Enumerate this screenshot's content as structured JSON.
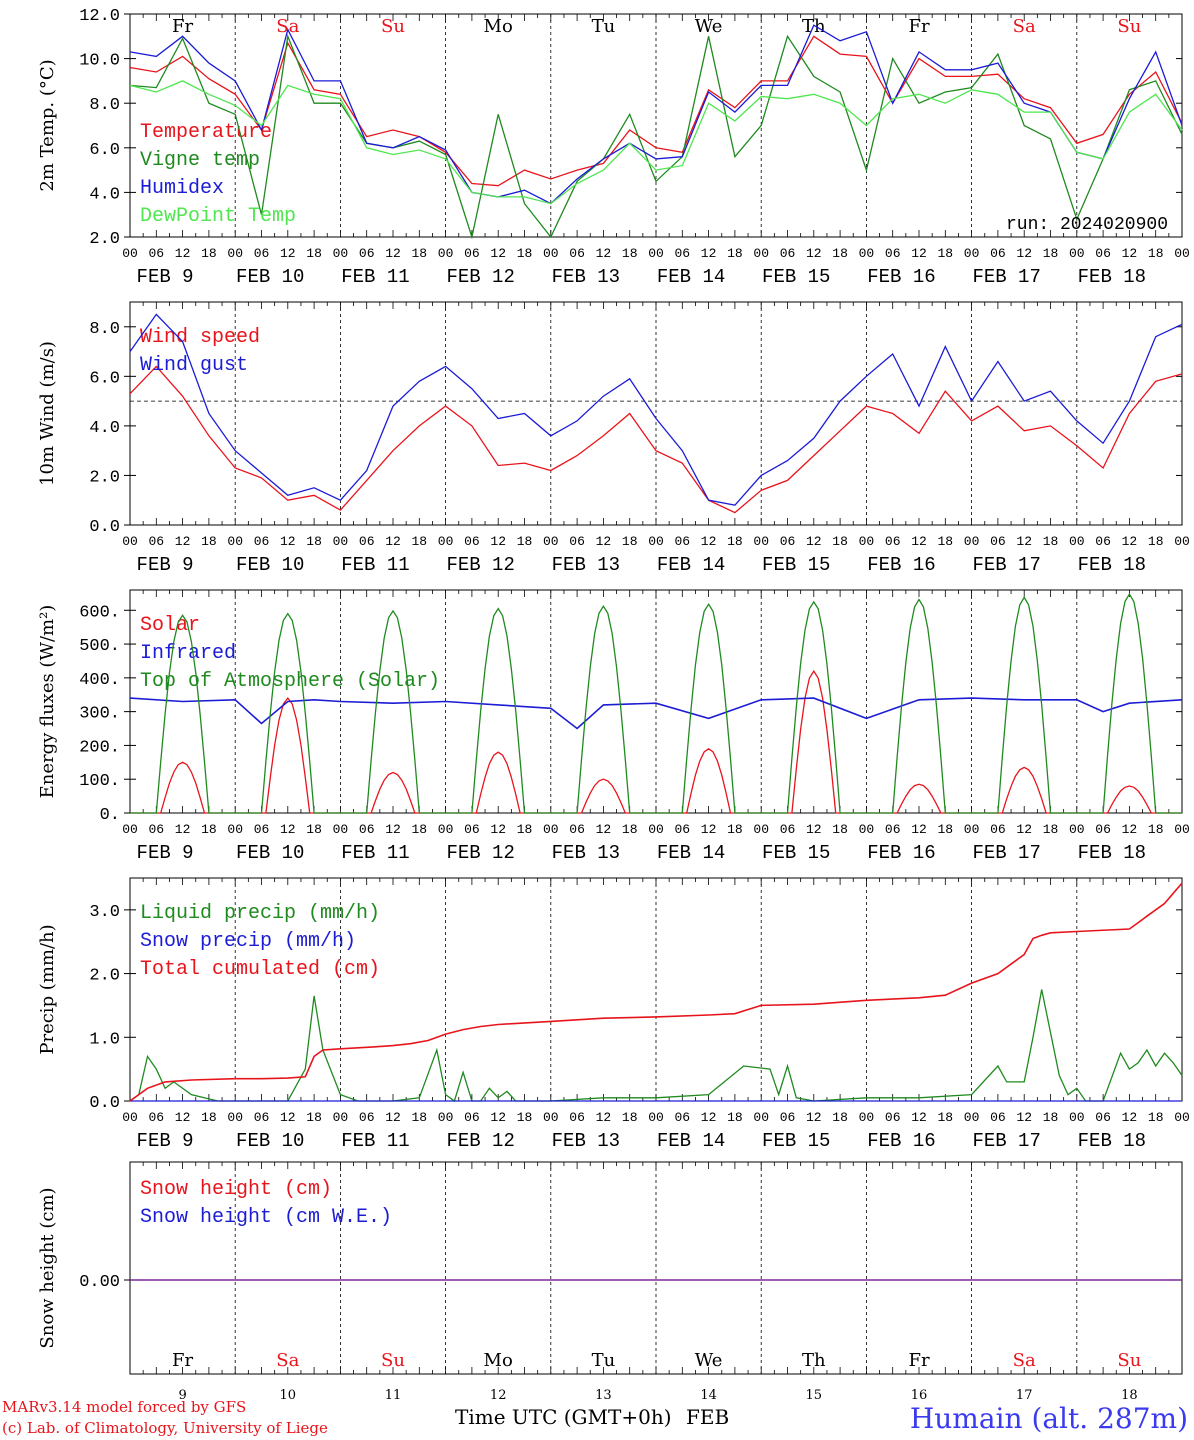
{
  "colors": {
    "red": "#e8141c",
    "darkgreen": "#1f8a1f",
    "blue": "#1c1cd6",
    "lightgreen": "#4fe64f",
    "black": "#000000",
    "purple": "#7a1f8f",
    "title_blue": "#3a3aee"
  },
  "axis": {
    "hour_ticks": [
      "00",
      "06",
      "12",
      "18"
    ],
    "final_hour": "00",
    "day_labels": [
      "FEB  9",
      "FEB 10",
      "FEB 11",
      "FEB 12",
      "FEB 13",
      "FEB 14",
      "FEB 15",
      "FEB 16",
      "FEB 17",
      "FEB 18"
    ],
    "weekdays": [
      "Fr",
      "Sa",
      "Su",
      "Mo",
      "Tu",
      "We",
      "Th",
      "Fr",
      "Sa",
      "Su"
    ],
    "weekday_colors": [
      "black",
      "red",
      "red",
      "black",
      "black",
      "black",
      "black",
      "black",
      "red",
      "red"
    ],
    "day_numbers": [
      "9",
      "10",
      "11",
      "12",
      "13",
      "14",
      "15",
      "16",
      "17",
      "18"
    ]
  },
  "footer": {
    "credit_line1": "MARv3.14 model forced by GFS",
    "credit_line2": "(c) Lab. of Climatology, University of Liege",
    "time_label": "Time UTC (GMT+0h)",
    "month": "FEB",
    "station": "Humain (alt. 287m)"
  },
  "chart_data": [
    {
      "type": "line",
      "ylabel": "2m Temp. (°C)",
      "ylim": [
        2,
        12
      ],
      "ytick_labels": [
        "2.0",
        "4.0",
        "6.0",
        "8.0",
        "10.0",
        "12.0"
      ],
      "annotation": "run: 2024020900",
      "x_unit": "hours since FEB 9 00 UTC",
      "series": [
        {
          "name": "Temperature",
          "color": "red",
          "x": [
            0,
            6,
            12,
            18,
            24,
            30,
            36,
            42,
            48,
            54,
            60,
            66,
            72,
            78,
            84,
            90,
            96,
            102,
            108,
            114,
            120,
            126,
            132,
            138,
            144,
            150,
            156,
            162,
            168,
            174,
            180,
            186,
            192,
            198,
            204,
            210,
            216,
            222,
            228,
            234,
            240
          ],
          "values": [
            9.6,
            9.4,
            10.1,
            9.1,
            8.4,
            6.8,
            10.7,
            8.6,
            8.4,
            6.5,
            6.8,
            6.5,
            5.8,
            4.4,
            4.3,
            5.0,
            4.6,
            5.0,
            5.3,
            6.8,
            6.0,
            5.8,
            8.6,
            7.8,
            9.0,
            9.0,
            11.0,
            10.2,
            10.1,
            8.0,
            10.0,
            9.2,
            9.2,
            9.3,
            8.2,
            7.8,
            6.2,
            6.6,
            8.4,
            9.4,
            7.1
          ]
        },
        {
          "name": "Vigne temp",
          "color": "darkgreen",
          "x": [
            0,
            6,
            12,
            18,
            24,
            30,
            36,
            42,
            48,
            54,
            60,
            66,
            72,
            78,
            84,
            90,
            96,
            102,
            108,
            114,
            120,
            126,
            132,
            138,
            144,
            150,
            156,
            162,
            168,
            174,
            180,
            186,
            192,
            198,
            204,
            210,
            216,
            222,
            228,
            234,
            240
          ],
          "values": [
            8.8,
            8.7,
            10.9,
            8.0,
            7.5,
            3.0,
            11.0,
            8.0,
            8.0,
            6.2,
            6.0,
            6.3,
            5.7,
            2.0,
            7.5,
            3.5,
            2.0,
            4.5,
            5.5,
            7.5,
            4.5,
            5.6,
            11.0,
            5.6,
            7.0,
            11.0,
            9.2,
            8.5,
            5.0,
            10.0,
            8.0,
            8.5,
            8.7,
            10.2,
            7.0,
            6.4,
            2.8,
            5.5,
            8.6,
            9.0,
            6.6
          ]
        },
        {
          "name": "Humidex",
          "color": "blue",
          "x": [
            0,
            6,
            12,
            18,
            24,
            30,
            36,
            42,
            48,
            54,
            60,
            66,
            72,
            78,
            84,
            90,
            96,
            102,
            108,
            114,
            120,
            126,
            132,
            138,
            144,
            150,
            156,
            162,
            168,
            174,
            180,
            186,
            192,
            198,
            204,
            210,
            216,
            222,
            228,
            234,
            240
          ],
          "values": [
            10.3,
            10.1,
            11.0,
            9.8,
            9.0,
            6.8,
            11.3,
            9.0,
            9.0,
            6.2,
            6.0,
            6.5,
            5.9,
            4.0,
            3.8,
            4.1,
            3.5,
            4.6,
            5.5,
            6.2,
            5.5,
            5.6,
            8.5,
            7.6,
            8.8,
            8.8,
            11.5,
            10.8,
            11.2,
            8.0,
            10.3,
            9.5,
            9.5,
            9.8,
            8.0,
            7.6,
            5.8,
            5.5,
            8.2,
            10.3,
            7.0
          ]
        },
        {
          "name": "DewPoint Temp",
          "color": "lightgreen",
          "x": [
            0,
            6,
            12,
            18,
            24,
            30,
            36,
            42,
            48,
            54,
            60,
            66,
            72,
            78,
            84,
            90,
            96,
            102,
            108,
            114,
            120,
            126,
            132,
            138,
            144,
            150,
            156,
            162,
            168,
            174,
            180,
            186,
            192,
            198,
            204,
            210,
            216,
            222,
            228,
            234,
            240
          ],
          "values": [
            8.8,
            8.5,
            9.0,
            8.4,
            7.9,
            7.0,
            8.8,
            8.4,
            8.2,
            6.0,
            5.7,
            5.9,
            5.5,
            4.0,
            3.8,
            3.8,
            3.5,
            4.4,
            5.0,
            6.2,
            5.0,
            5.2,
            8.0,
            7.2,
            8.3,
            8.2,
            8.4,
            8.0,
            7.0,
            8.2,
            8.4,
            8.0,
            8.6,
            8.4,
            7.6,
            7.6,
            5.8,
            5.5,
            7.6,
            8.4,
            6.8
          ]
        }
      ]
    },
    {
      "type": "line",
      "ylabel": "10m Wind (m/s)",
      "ylim": [
        0,
        9
      ],
      "ytick_labels": [
        "0.0",
        "2.0",
        "4.0",
        "6.0",
        "8.0"
      ],
      "reference_line": 5.0,
      "x_unit": "hours since FEB 9 00 UTC",
      "series": [
        {
          "name": "Wind speed",
          "color": "red",
          "x": [
            0,
            6,
            12,
            18,
            24,
            30,
            36,
            42,
            48,
            54,
            60,
            66,
            72,
            78,
            84,
            90,
            96,
            102,
            108,
            114,
            120,
            126,
            132,
            138,
            144,
            150,
            156,
            162,
            168,
            174,
            180,
            186,
            192,
            198,
            204,
            210,
            216,
            222,
            228,
            234,
            240
          ],
          "values": [
            5.3,
            6.4,
            5.2,
            3.6,
            2.3,
            1.9,
            1.0,
            1.2,
            0.6,
            1.8,
            3.0,
            4.0,
            4.8,
            4.0,
            2.4,
            2.5,
            2.2,
            2.8,
            3.6,
            4.5,
            3.0,
            2.5,
            1.0,
            0.5,
            1.4,
            1.8,
            2.8,
            3.8,
            4.8,
            4.5,
            3.7,
            5.4,
            4.2,
            4.8,
            3.8,
            4.0,
            3.2,
            2.3,
            4.5,
            5.8,
            6.1
          ]
        },
        {
          "name": "Wind gust",
          "color": "blue",
          "x": [
            0,
            6,
            12,
            18,
            24,
            30,
            36,
            42,
            48,
            54,
            60,
            66,
            72,
            78,
            84,
            90,
            96,
            102,
            108,
            114,
            120,
            126,
            132,
            138,
            144,
            150,
            156,
            162,
            168,
            174,
            180,
            186,
            192,
            198,
            204,
            210,
            216,
            222,
            228,
            234,
            240
          ],
          "values": [
            7.0,
            8.5,
            7.4,
            4.5,
            3.0,
            2.1,
            1.2,
            1.5,
            1.0,
            2.2,
            4.8,
            5.8,
            6.4,
            5.5,
            4.3,
            4.5,
            3.6,
            4.2,
            5.2,
            5.9,
            4.3,
            3.0,
            1.0,
            0.8,
            2.0,
            2.6,
            3.5,
            5.0,
            6.0,
            6.9,
            4.8,
            7.2,
            5.0,
            6.6,
            5.0,
            5.4,
            4.2,
            3.3,
            5.0,
            7.6,
            8.1
          ]
        }
      ]
    },
    {
      "type": "line",
      "ylabel": "Energy fluxes (W/m²)",
      "ylim": [
        0,
        660
      ],
      "ytick_labels": [
        "0.",
        "100.",
        "200.",
        "300.",
        "400.",
        "500.",
        "600."
      ],
      "x_unit": "hours since FEB 9 00 UTC",
      "series": [
        {
          "name": "Solar",
          "color": "red",
          "daily_peak_hour": [
            12,
            12,
            12,
            12,
            12,
            12,
            12,
            12,
            12,
            12
          ],
          "daily_peak": [
            150,
            340,
            120,
            180,
            100,
            190,
            420,
            85,
            135,
            80
          ]
        },
        {
          "name": "Infrared",
          "color": "blue",
          "x": [
            0,
            12,
            24,
            30,
            36,
            42,
            48,
            60,
            72,
            84,
            96,
            102,
            108,
            120,
            132,
            144,
            156,
            168,
            180,
            192,
            204,
            216,
            222,
            228,
            240
          ],
          "values": [
            340,
            330,
            335,
            265,
            330,
            335,
            330,
            325,
            330,
            320,
            310,
            250,
            320,
            325,
            280,
            335,
            340,
            280,
            335,
            340,
            335,
            335,
            300,
            325,
            335
          ]
        },
        {
          "name": "Top of Atmosphere (Solar)",
          "color": "darkgreen",
          "daily_peak_hour": [
            12,
            12,
            12,
            12,
            12,
            12,
            12,
            12,
            12,
            12
          ],
          "daily_peak": [
            585,
            590,
            598,
            605,
            612,
            618,
            625,
            632,
            638,
            648
          ]
        }
      ]
    },
    {
      "type": "line",
      "ylabel": "Precip (mm/h)",
      "ylim": [
        0,
        3.5
      ],
      "ytick_labels": [
        "0.0",
        "1.0",
        "2.0",
        "3.0"
      ],
      "x_unit": "hours since FEB 9 00 UTC",
      "series": [
        {
          "name": "Liquid precip (mm/h)",
          "color": "darkgreen",
          "x": [
            0,
            2,
            4,
            6,
            8,
            10,
            14,
            20,
            30,
            36,
            40,
            42,
            44,
            48,
            52,
            56,
            60,
            66,
            70,
            72,
            74,
            76,
            78,
            80,
            82,
            84,
            86,
            88,
            90,
            96,
            108,
            120,
            132,
            140,
            146,
            148,
            150,
            152,
            156,
            168,
            180,
            192,
            198,
            200,
            204,
            206,
            208,
            212,
            214,
            216,
            218,
            222,
            226,
            228,
            230,
            232,
            234,
            236,
            238,
            240
          ],
          "values": [
            0,
            0.1,
            0.7,
            0.5,
            0.2,
            0.3,
            0.1,
            0,
            0,
            0,
            0.5,
            1.65,
            0.8,
            0.1,
            0,
            0,
            0,
            0.05,
            0.8,
            0.1,
            0,
            0.45,
            0,
            0,
            0.2,
            0.05,
            0.15,
            0,
            0,
            0,
            0.05,
            0.05,
            0.1,
            0.55,
            0.5,
            0.1,
            0.55,
            0.05,
            0,
            0.05,
            0.05,
            0.1,
            0.55,
            0.3,
            0.3,
            1.0,
            1.75,
            0.4,
            0.1,
            0.2,
            0,
            0,
            0.75,
            0.5,
            0.6,
            0.8,
            0.55,
            0.75,
            0.6,
            0.4
          ]
        },
        {
          "name": "Snow precip (mm/h)",
          "color": "blue",
          "x": [
            0,
            240
          ],
          "values": [
            0,
            0
          ]
        },
        {
          "name": "Total cumulated (cm)",
          "color": "red",
          "x": [
            0,
            4,
            8,
            14,
            24,
            30,
            36,
            40,
            42,
            44,
            48,
            56,
            60,
            64,
            68,
            72,
            76,
            80,
            84,
            96,
            108,
            120,
            132,
            138,
            144,
            156,
            168,
            180,
            186,
            192,
            198,
            204,
            206,
            208,
            210,
            216,
            228,
            230,
            232,
            236,
            240
          ],
          "values": [
            0,
            0.2,
            0.3,
            0.33,
            0.35,
            0.35,
            0.36,
            0.38,
            0.7,
            0.8,
            0.82,
            0.85,
            0.87,
            0.9,
            0.95,
            1.05,
            1.12,
            1.17,
            1.2,
            1.25,
            1.3,
            1.32,
            1.35,
            1.37,
            1.5,
            1.52,
            1.58,
            1.62,
            1.66,
            1.85,
            2.0,
            2.3,
            2.55,
            2.6,
            2.64,
            2.66,
            2.7,
            2.8,
            2.9,
            3.1,
            3.42
          ]
        }
      ]
    },
    {
      "type": "line",
      "ylabel": "Snow height (cm)",
      "ytick_labels": [
        "0.00"
      ],
      "x_unit": "hours since FEB 9 00 UTC",
      "series": [
        {
          "name": "Snow height (cm)",
          "color": "red",
          "x": [
            0,
            240
          ],
          "values": [
            0,
            0
          ]
        },
        {
          "name": "Snow height (cm W.E.)",
          "color": "blue",
          "x": [
            0,
            240
          ],
          "values": [
            0,
            0
          ]
        }
      ]
    }
  ]
}
